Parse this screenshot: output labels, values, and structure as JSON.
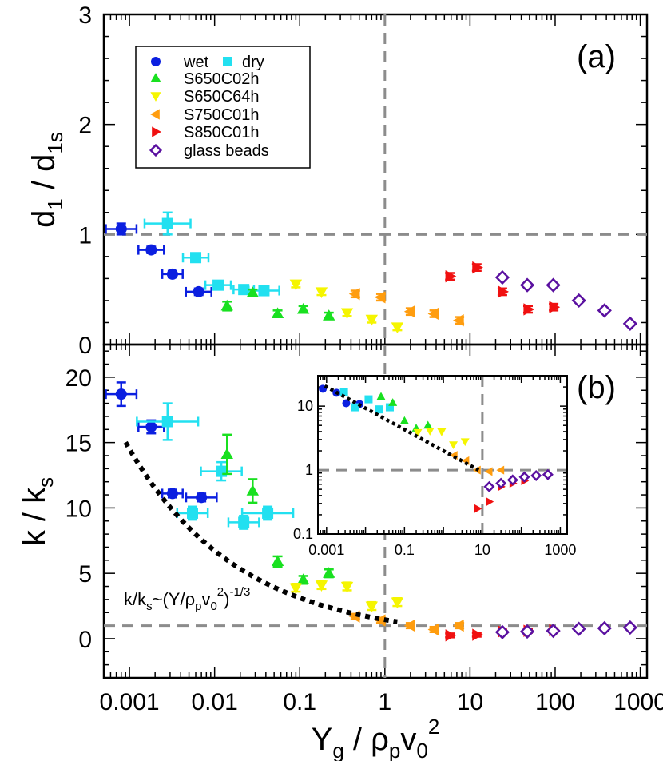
{
  "xaxis": {
    "label_main": "Y",
    "label_sub": "g",
    "label_rest": " / ρ",
    "label_sub2": "p",
    "label_rest2": "v",
    "label_sub3": "0",
    "label_sup": "2",
    "ticks": [
      "0.001",
      "0.01",
      "0.1",
      "1",
      "10",
      "100",
      "1000"
    ]
  },
  "panel_a": {
    "tag": "(a)",
    "ylabel_main": "d",
    "ylabel_sub": "1",
    "ylabel_mid": " / d",
    "ylabel_sub2": "1s",
    "yticks": [
      "0",
      "1",
      "2",
      "3"
    ]
  },
  "panel_b": {
    "tag": "(b)",
    "ylabel_main": "k / k",
    "ylabel_sub": "s",
    "yticks": [
      "0",
      "5",
      "10",
      "15",
      "20"
    ],
    "fit_label": {
      "a": "k/k",
      "b": "s",
      "c": "~(Y/ρ",
      "d": "p",
      "e": "v",
      "f": "0",
      "g": "2",
      "h": ")",
      "i": "-1/3"
    }
  },
  "inset": {
    "xticks": [
      "0.001",
      "0.1",
      "10",
      "1000"
    ],
    "yticks": [
      "10",
      "1",
      "0.1"
    ]
  },
  "legend": [
    {
      "label": "wet",
      "color": "#0b1fe0",
      "marker": "circle"
    },
    {
      "label": "dry",
      "color": "#22e0f0",
      "marker": "square"
    },
    {
      "label": "S650C02h",
      "color": "#19e020",
      "marker": "triangle-up"
    },
    {
      "label": "S650C64h",
      "color": "#f5f500",
      "marker": "triangle-down"
    },
    {
      "label": "S750C01h",
      "color": "#ff9d0f",
      "marker": "triangle-left"
    },
    {
      "label": "S850C01h",
      "color": "#f01010",
      "marker": "triangle-right"
    },
    {
      "label": "glass beads",
      "color": "#5a10a0",
      "marker": "diamond-open"
    }
  ],
  "chart_data": [
    {
      "type": "scatter",
      "panel": "a",
      "xscale": "log",
      "xlim": [
        0.0005,
        1200
      ],
      "ylim": [
        0,
        3
      ],
      "reference_lines": {
        "x": 1,
        "y": 1
      },
      "series": [
        {
          "name": "wet",
          "points": [
            [
              0.0008,
              1.05,
              0.06,
              0.05
            ],
            [
              0.0018,
              0.86,
              0.05,
              0.03
            ],
            [
              0.0032,
              0.64,
              0.04,
              0.03
            ],
            [
              0.0065,
              0.48,
              0.05,
              0.03
            ]
          ]
        },
        {
          "name": "dry",
          "points": [
            [
              0.0028,
              1.1,
              0.09,
              0.1
            ],
            [
              0.006,
              0.79,
              0.05,
              0.04
            ],
            [
              0.011,
              0.54,
              0.05,
              0.03
            ],
            [
              0.022,
              0.5,
              0.04,
              0.03
            ],
            [
              0.038,
              0.49,
              0.06,
              0.03
            ]
          ]
        },
        {
          "name": "S650C02h",
          "points": [
            [
              0.014,
              0.35,
              0,
              0.04
            ],
            [
              0.028,
              0.47,
              0,
              0.03
            ],
            [
              0.055,
              0.28,
              0,
              0.03
            ],
            [
              0.11,
              0.32,
              0,
              0.03
            ],
            [
              0.22,
              0.26,
              0,
              0.03
            ]
          ]
        },
        {
          "name": "S650C64h",
          "points": [
            [
              0.09,
              0.55,
              0,
              0.03
            ],
            [
              0.18,
              0.48,
              0,
              0.03
            ],
            [
              0.36,
              0.29,
              0,
              0.03
            ],
            [
              0.7,
              0.23,
              0,
              0.03
            ],
            [
              1.4,
              0.16,
              0,
              0.03
            ]
          ]
        },
        {
          "name": "S750C01h",
          "points": [
            [
              0.45,
              0.46,
              0,
              0.03
            ],
            [
              0.9,
              0.43,
              0,
              0.03
            ],
            [
              2.0,
              0.3,
              0,
              0.03
            ],
            [
              3.8,
              0.28,
              0,
              0.03
            ],
            [
              7.5,
              0.22,
              0,
              0.03
            ]
          ]
        },
        {
          "name": "S850C01h",
          "points": [
            [
              5.8,
              0.62,
              0,
              0.03
            ],
            [
              12,
              0.7,
              0,
              0.03
            ],
            [
              24,
              0.48,
              0,
              0.03
            ],
            [
              48,
              0.32,
              0,
              0.03
            ],
            [
              96,
              0.34,
              0,
              0.03
            ]
          ]
        },
        {
          "name": "glass beads",
          "points": [
            [
              24,
              0.61
            ],
            [
              47,
              0.54
            ],
            [
              95,
              0.54
            ],
            [
              190,
              0.4
            ],
            [
              380,
              0.31
            ],
            [
              760,
              0.19
            ]
          ]
        }
      ]
    },
    {
      "type": "scatter",
      "panel": "b",
      "xscale": "log",
      "xlim": [
        0.0005,
        1200
      ],
      "ylim": [
        -3,
        22.5
      ],
      "reference_lines": {
        "x": 1,
        "y": 1
      },
      "fit": {
        "form": "power",
        "exponent": -0.3333,
        "prefactor": 1.45,
        "xrange": [
          0.0009,
          1.4
        ]
      },
      "series": [
        {
          "name": "wet",
          "points": [
            [
              0.0008,
              18.7,
              0.06,
              0.9
            ],
            [
              0.0018,
              16.2,
              0.05,
              0.5
            ],
            [
              0.0032,
              11.1,
              0.04,
              0.3
            ],
            [
              0.007,
              10.8,
              0.06,
              0.3
            ]
          ]
        },
        {
          "name": "dry",
          "points": [
            [
              0.0028,
              16.6,
              0.12,
              1.4
            ],
            [
              0.0055,
              9.6,
              0.06,
              0.5
            ],
            [
              0.012,
              12.8,
              0.08,
              0.7
            ],
            [
              0.022,
              8.9,
              0.06,
              0.5
            ],
            [
              0.042,
              9.6,
              0.1,
              0.5
            ]
          ]
        },
        {
          "name": "S650C02h",
          "points": [
            [
              0.014,
              14.1,
              0,
              1.5
            ],
            [
              0.028,
              11.3,
              0,
              0.9
            ],
            [
              0.055,
              5.9,
              0,
              0.4
            ],
            [
              0.11,
              4.5,
              0,
              0.3
            ],
            [
              0.22,
              5.0,
              0,
              0.3
            ]
          ]
        },
        {
          "name": "S650C64h",
          "points": [
            [
              0.09,
              3.9,
              0,
              0.3
            ],
            [
              0.18,
              4.1,
              0,
              0.3
            ],
            [
              0.36,
              4.0,
              0,
              0.3
            ],
            [
              0.7,
              2.5,
              0,
              0.3
            ],
            [
              1.4,
              2.8,
              0,
              0.3
            ]
          ]
        },
        {
          "name": "S750C01h",
          "points": [
            [
              0.45,
              1.7,
              0,
              0.2
            ],
            [
              0.9,
              1.4,
              0,
              0.2
            ],
            [
              2.0,
              1.0,
              0,
              0.2
            ],
            [
              3.8,
              0.7,
              0,
              0.2
            ],
            [
              7.5,
              1.0,
              0,
              0.2
            ]
          ]
        },
        {
          "name": "S850C01h",
          "points": [
            [
              5.8,
              0.25,
              0,
              0.15
            ],
            [
              12,
              0.3,
              0,
              0.15
            ],
            [
              24,
              0.55,
              0,
              0.15
            ],
            [
              48,
              0.6,
              0,
              0.15
            ],
            [
              96,
              0.65,
              0,
              0.15
            ]
          ]
        },
        {
          "name": "glass beads",
          "points": [
            [
              24,
              0.5
            ],
            [
              47,
              0.55
            ],
            [
              95,
              0.6
            ],
            [
              190,
              0.75
            ],
            [
              380,
              0.8
            ],
            [
              760,
              0.85
            ]
          ]
        }
      ]
    },
    {
      "type": "scatter",
      "panel": "b-inset",
      "xscale": "log",
      "xlim": [
        0.0006,
        1500
      ],
      "yscale": "log",
      "ylim": [
        0.1,
        30
      ],
      "reference_lines": {
        "x": 10,
        "y": 1
      },
      "fit": {
        "form": "power",
        "exponent": -0.3333,
        "prefactor": 2.0,
        "xrange": [
          0.0009,
          8
        ]
      },
      "series": [
        {
          "name": "wet",
          "points": [
            [
              0.0008,
              18.7
            ],
            [
              0.0018,
              16.2
            ],
            [
              0.0032,
              11.1
            ],
            [
              0.007,
              10.8
            ]
          ]
        },
        {
          "name": "dry",
          "points": [
            [
              0.0028,
              16.6
            ],
            [
              0.0055,
              9.6
            ],
            [
              0.012,
              12.8
            ],
            [
              0.022,
              8.9
            ],
            [
              0.042,
              9.6
            ]
          ]
        },
        {
          "name": "S650C02h",
          "points": [
            [
              0.025,
              14.1
            ],
            [
              0.05,
              11.3
            ],
            [
              0.1,
              5.9
            ],
            [
              0.2,
              4.5
            ],
            [
              0.4,
              5.0
            ]
          ]
        },
        {
          "name": "S650C64h",
          "points": [
            [
              0.22,
              3.9
            ],
            [
              0.45,
              4.1
            ],
            [
              0.9,
              4.0
            ],
            [
              1.8,
              2.5
            ],
            [
              3.6,
              2.8
            ]
          ]
        },
        {
          "name": "S750C01h",
          "points": [
            [
              1.9,
              1.7
            ],
            [
              3.8,
              1.4
            ],
            [
              7.5,
              1.0
            ],
            [
              15,
              0.95
            ],
            [
              30,
              1.0
            ]
          ]
        },
        {
          "name": "S850C01h",
          "points": [
            [
              7.5,
              0.25
            ],
            [
              15,
              0.32
            ],
            [
              30,
              0.55
            ],
            [
              60,
              0.62
            ],
            [
              120,
              0.68
            ]
          ]
        },
        {
          "name": "glass beads",
          "points": [
            [
              15,
              0.55
            ],
            [
              30,
              0.62
            ],
            [
              60,
              0.7
            ],
            [
              120,
              0.78
            ],
            [
              240,
              0.82
            ],
            [
              480,
              0.85
            ]
          ]
        }
      ]
    }
  ]
}
